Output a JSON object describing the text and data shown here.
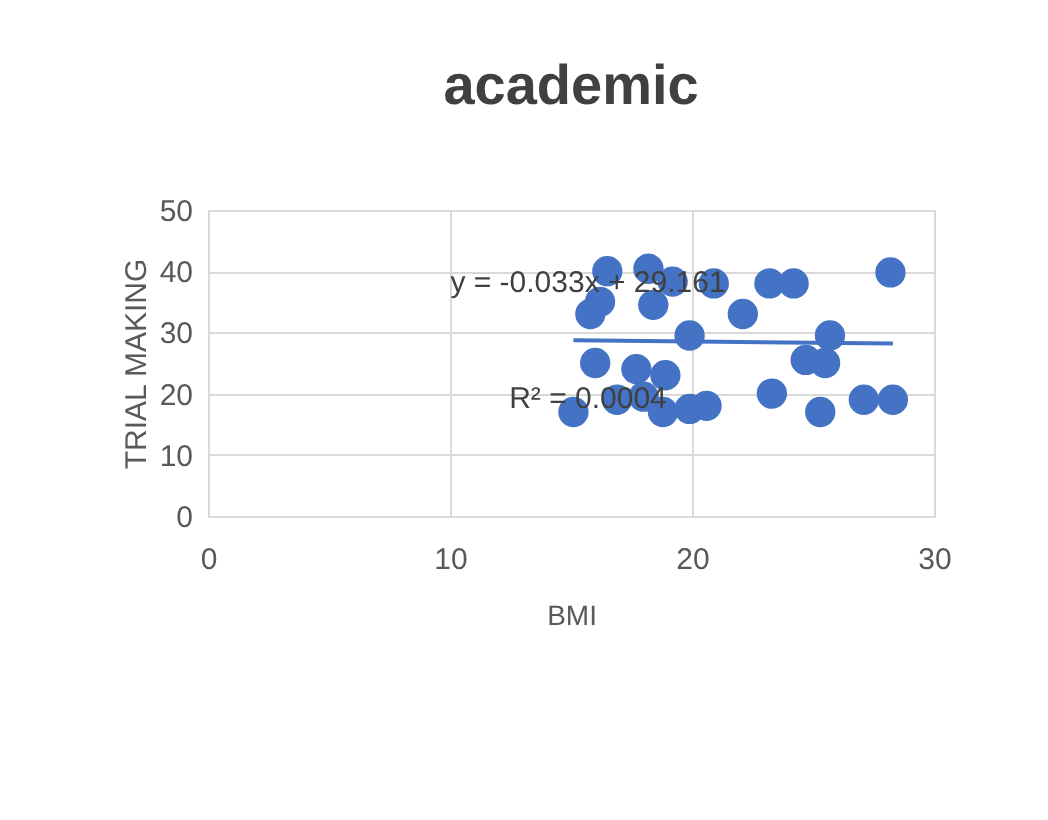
{
  "chart_data": {
    "type": "scatter",
    "title": "academic",
    "xlabel": "BMI",
    "ylabel": "TRIAL MAKING",
    "xlim": [
      0,
      30
    ],
    "xticks": [
      0,
      10,
      20,
      30
    ],
    "ylim": [
      0,
      50
    ],
    "yticks": [
      0,
      10,
      20,
      30,
      40,
      50
    ],
    "grid": true,
    "marker": "circle",
    "annotations": [
      "y = -0.033x + 29.161",
      "R² = 0.0004"
    ],
    "series": [
      {
        "type": "scatter",
        "color": "#4472c4",
        "x": [
          16.5,
          18.2,
          19.2,
          20.9,
          23.2,
          24.2,
          28.2,
          16.2,
          15.8,
          18.4,
          22.1,
          19.9,
          25.7,
          16.0,
          24.7,
          25.5,
          17.7,
          18.9,
          15.1,
          16.9,
          18.0,
          18.8,
          19.9,
          20.6,
          23.3,
          25.3,
          27.1,
          28.3
        ],
        "values": [
          40,
          40.4,
          38.3,
          38,
          38,
          38,
          39.8,
          35,
          33,
          34.5,
          33,
          29.5,
          29.5,
          25,
          25.5,
          25,
          24,
          23,
          17,
          19,
          19.5,
          17,
          17.5,
          18,
          20,
          17,
          19,
          19
        ]
      },
      {
        "type": "line",
        "marker": "none",
        "line_style": "solid",
        "color": "#4472c4",
        "x": [
          15.1,
          28.3
        ],
        "values": [
          28.7,
          28.2
        ]
      }
    ]
  }
}
